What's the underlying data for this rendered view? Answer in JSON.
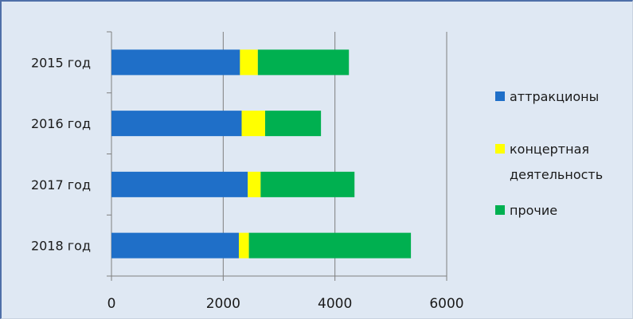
{
  "chart_data": {
    "type": "bar",
    "orientation": "horizontal",
    "stacked": true,
    "categories": [
      "2015 год",
      "2016 год",
      "2017 год",
      "2018 год"
    ],
    "series": [
      {
        "name": "аттракционы",
        "values": [
          2300,
          2330,
          2440,
          2280
        ],
        "color": "#1f6fc8"
      },
      {
        "name": "концертная деятельность",
        "values": [
          320,
          420,
          230,
          180
        ],
        "color": "#ffff00"
      },
      {
        "name": "прочие",
        "values": [
          1630,
          1000,
          1680,
          2900
        ],
        "color": "#00b050"
      }
    ],
    "x_ticks": [
      "0",
      "2000",
      "4000",
      "6000"
    ],
    "xlim": [
      0,
      6000
    ],
    "grid": "vertical",
    "legend": {
      "placement": "right",
      "entries": [
        {
          "lines": [
            "аттракционы"
          ],
          "color": "#1f6fc8"
        },
        {
          "lines": [
            "концертная",
            "деятельность"
          ],
          "color": "#ffff00"
        },
        {
          "lines": [
            "прочие"
          ],
          "color": "#00b050"
        }
      ]
    },
    "colors": {
      "background": "#dfe8f3",
      "axis": "#7f7f7f",
      "gridline": "#7f7f7f"
    }
  }
}
